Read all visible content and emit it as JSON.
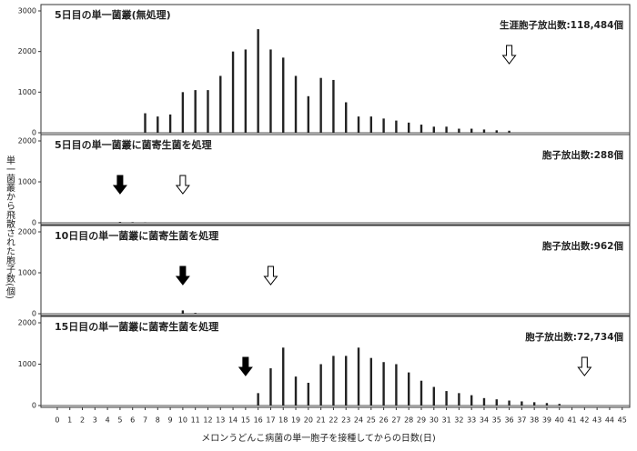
{
  "x_axis": {
    "label": "メロンうどんこ病菌の単一胞子を接種してからの日数(日)",
    "ticks": [
      0,
      1,
      2,
      3,
      4,
      5,
      6,
      7,
      8,
      9,
      10,
      11,
      12,
      13,
      14,
      15,
      16,
      17,
      18,
      19,
      20,
      21,
      22,
      23,
      24,
      25,
      26,
      27,
      28,
      29,
      30,
      31,
      32,
      33,
      34,
      35,
      36,
      37,
      38,
      39,
      40,
      41,
      42,
      43,
      44,
      45
    ]
  },
  "y_label": "単一菌叢から飛散された胞子数(個)",
  "chart_data": [
    {
      "type": "bar",
      "title": "5日目の単一菌叢(無処理)",
      "annotation": "生涯胞子放出数:118,484個",
      "color": "#222222",
      "x": [
        7,
        8,
        9,
        10,
        11,
        12,
        13,
        14,
        15,
        16,
        17,
        18,
        19,
        20,
        21,
        22,
        23,
        24,
        25,
        26,
        27,
        28,
        29,
        30,
        31,
        32,
        33,
        34,
        35,
        36
      ],
      "values": [
        480,
        400,
        450,
        1000,
        1050,
        1050,
        1400,
        2000,
        2050,
        2550,
        2050,
        1850,
        1400,
        900,
        1350,
        1300,
        750,
        400,
        400,
        350,
        300,
        250,
        200,
        150,
        150,
        100,
        100,
        80,
        60,
        50
      ],
      "xlim": [
        -1.3,
        45.6
      ],
      "ylim": [
        0,
        3000
      ],
      "yticks": [
        0,
        1000,
        2000,
        3000
      ],
      "arrows": [
        {
          "x": 36,
          "style": "open"
        }
      ]
    },
    {
      "type": "bar",
      "title": "5日目の単一菌叢に菌寄生菌を処理",
      "annotation": "胞子放出数:288個",
      "color": "#222222",
      "x": [
        5,
        6,
        7
      ],
      "values": [
        20,
        15,
        10
      ],
      "xlim": [
        -1.3,
        45.6
      ],
      "ylim": [
        0,
        2000
      ],
      "yticks": [
        0,
        1000,
        2000
      ],
      "arrows": [
        {
          "x": 5,
          "style": "filled"
        },
        {
          "x": 10,
          "style": "open"
        }
      ]
    },
    {
      "type": "bar",
      "title": "10日目の単一菌叢に菌寄生菌を処理",
      "annotation": "胞子放出数:962個",
      "color": "#222222",
      "x": [
        10,
        11
      ],
      "values": [
        80,
        20
      ],
      "xlim": [
        -1.3,
        45.6
      ],
      "ylim": [
        0,
        2000
      ],
      "yticks": [
        0,
        1000,
        2000
      ],
      "arrows": [
        {
          "x": 10,
          "style": "filled"
        },
        {
          "x": 17,
          "style": "open"
        }
      ]
    },
    {
      "type": "bar",
      "title": "15日目の単一菌叢に菌寄生菌を処理",
      "annotation": "胞子放出数:72,734個",
      "color": "#222222",
      "x": [
        16,
        17,
        18,
        19,
        20,
        21,
        22,
        23,
        24,
        25,
        26,
        27,
        28,
        29,
        30,
        31,
        32,
        33,
        34,
        35,
        36,
        37,
        38,
        39,
        40
      ],
      "values": [
        300,
        900,
        1400,
        700,
        550,
        1000,
        1200,
        1200,
        1400,
        1150,
        1050,
        1000,
        800,
        600,
        450,
        350,
        300,
        250,
        180,
        150,
        120,
        100,
        80,
        60,
        40
      ],
      "xlim": [
        -1.3,
        45.6
      ],
      "ylim": [
        0,
        2000
      ],
      "yticks": [
        0,
        1000,
        2000
      ],
      "arrows": [
        {
          "x": 15,
          "style": "filled"
        },
        {
          "x": 42,
          "style": "open"
        }
      ]
    }
  ]
}
